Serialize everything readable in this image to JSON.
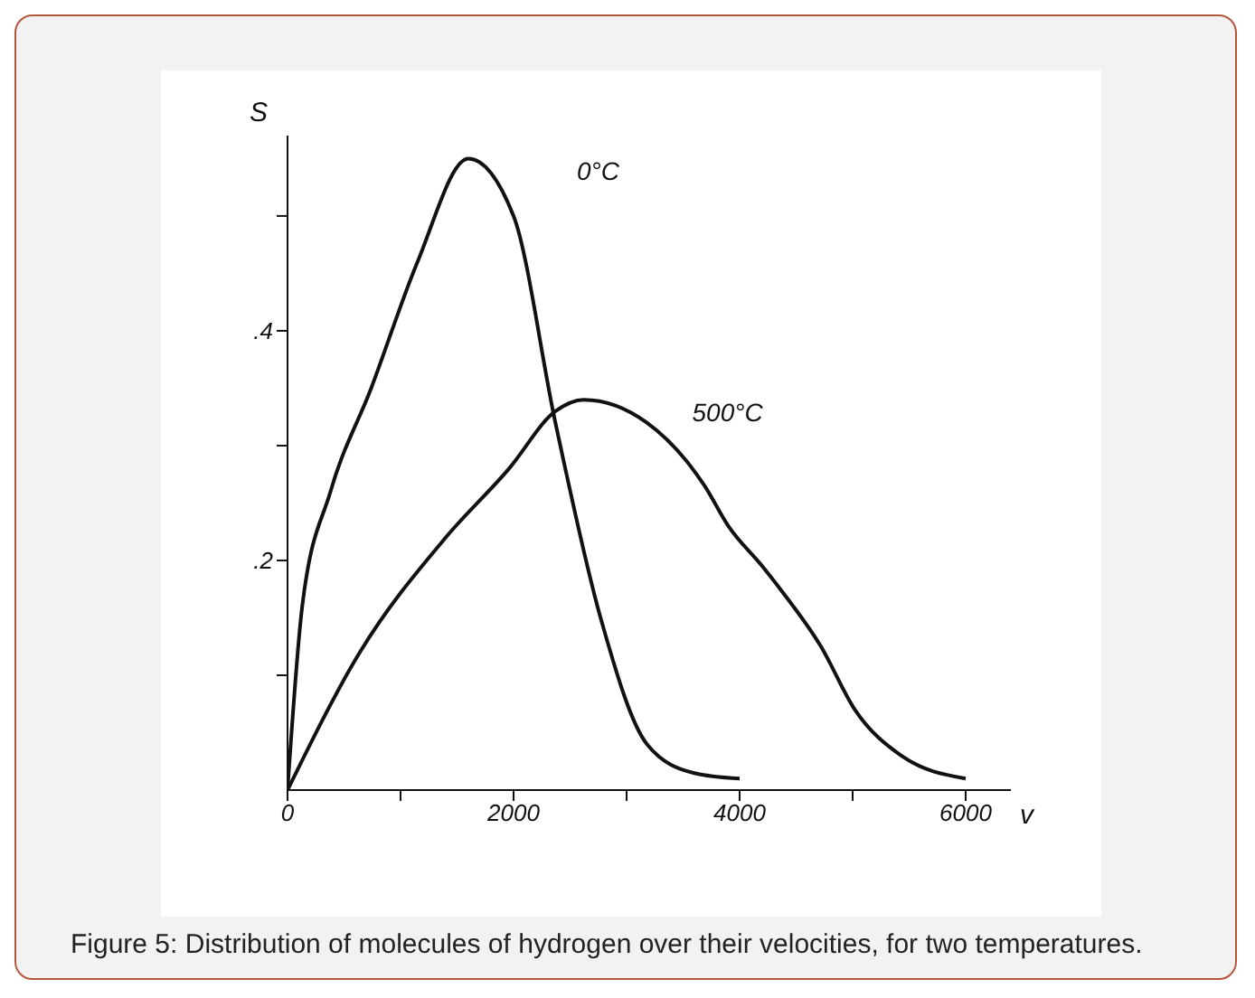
{
  "chart_data": {
    "type": "line",
    "xlabel": "v",
    "ylabel": "S",
    "annotations": [
      "Figure 5: Distribution of molecules of hydrogen over their velocities, for two temperatures."
    ],
    "series": [
      {
        "name": "0°C",
        "color": "#111111",
        "x": [
          0,
          130,
          380,
          740,
          1150,
          1600,
          2000,
          2370,
          2770,
          3180,
          3590,
          4000
        ],
        "values": [
          0,
          0.16,
          0.26,
          0.35,
          0.46,
          0.55,
          0.5,
          0.32,
          0.15,
          0.04,
          0.015,
          0.01
        ]
      },
      {
        "name": "500°C",
        "color": "#111111",
        "x": [
          0,
          640,
          1400,
          1960,
          2370,
          2620,
          3180,
          3690,
          3900,
          4200,
          4360,
          4720,
          5020,
          5430,
          6000
        ],
        "values": [
          0,
          0.12,
          0.22,
          0.28,
          0.33,
          0.34,
          0.32,
          0.265,
          0.23,
          0.195,
          0.175,
          0.125,
          0.07,
          0.03,
          0.01
        ]
      }
    ],
    "xlim": [
      0,
      6400
    ],
    "ylim": [
      0,
      0.57
    ],
    "xticks": [
      0,
      {
        "value": 1000,
        "label": null
      },
      2000,
      {
        "value": 3000,
        "label": null
      },
      4000,
      {
        "value": 5000,
        "label": null
      },
      6000
    ],
    "yticks": [
      {
        "value": 0.1,
        "label": null
      },
      {
        "value": 0.2,
        "label": ".2"
      },
      {
        "value": 0.3,
        "label": null
      },
      {
        "value": 0.4,
        "label": ".4"
      },
      {
        "value": 0.5,
        "label": null
      }
    ],
    "grid": false,
    "legend": false,
    "marker": "none",
    "line_style": "solid"
  }
}
